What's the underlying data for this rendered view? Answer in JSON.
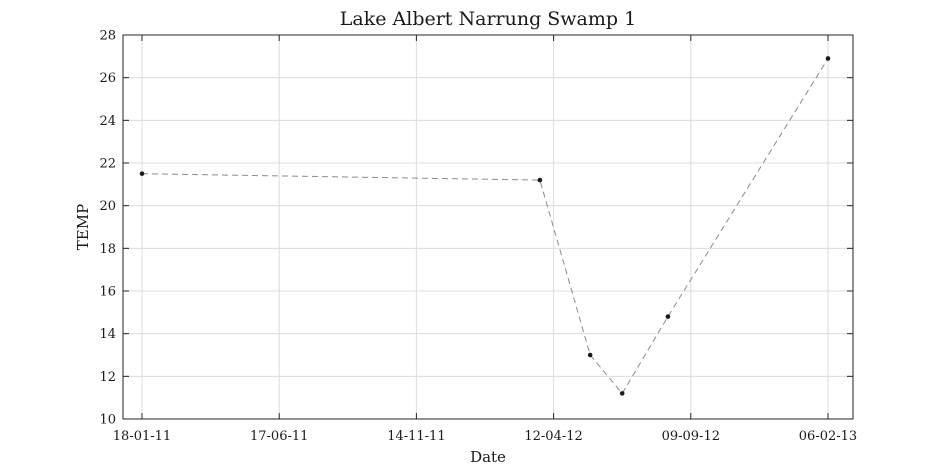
{
  "chart_data": {
    "type": "line",
    "title": "Lake Albert Narrung Swamp 1",
    "xlabel": "Date",
    "ylabel": "TEMP",
    "x_type": "date",
    "xlim": [
      "2011-01-18",
      "2013-02-06"
    ],
    "ylim": [
      10,
      28
    ],
    "grid": true,
    "x_ticks": [
      {
        "date": "2011-01-18",
        "label": "18-01-11"
      },
      {
        "date": "2011-06-17",
        "label": "17-06-11"
      },
      {
        "date": "2011-11-14",
        "label": "14-11-11"
      },
      {
        "date": "2012-04-12",
        "label": "12-04-12"
      },
      {
        "date": "2012-09-09",
        "label": "09-09-12"
      },
      {
        "date": "2013-02-06",
        "label": "06-02-13"
      }
    ],
    "y_ticks": [
      10,
      12,
      14,
      16,
      18,
      20,
      22,
      24,
      26,
      28
    ],
    "series": [
      {
        "line_style": "dashed",
        "line_color": "#8c8c8c",
        "marker_color": "#1a1a1a",
        "points": [
          {
            "x": "2011-01-18",
            "y": 21.5
          },
          {
            "x": "2012-03-28",
            "y": 21.2
          },
          {
            "x": "2012-05-22",
            "y": 13.0
          },
          {
            "x": "2012-06-26",
            "y": 11.2
          },
          {
            "x": "2012-08-15",
            "y": 14.8
          },
          {
            "x": "2013-02-06",
            "y": 26.9
          }
        ]
      }
    ]
  }
}
